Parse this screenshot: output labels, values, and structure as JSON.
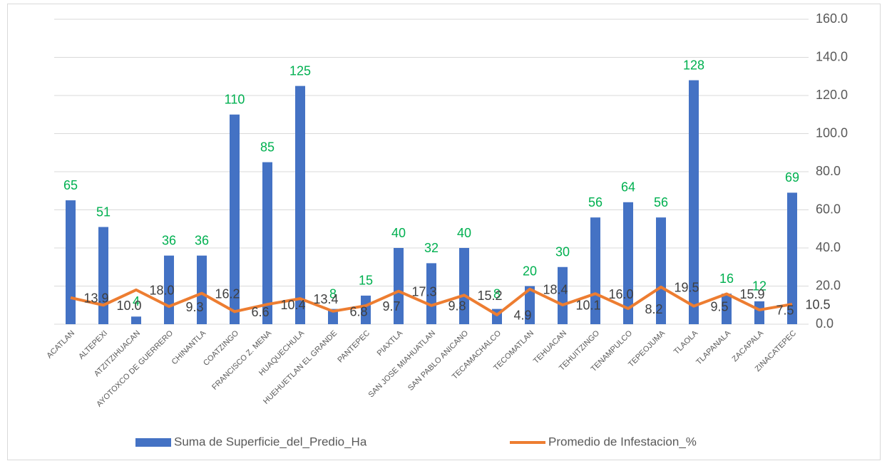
{
  "chart_data": {
    "type": "bar-line",
    "categories": [
      "ACATLAN",
      "ALTEPEXI",
      "ATZITZIHUACAN",
      "AYOTOXCO DE GUERRERO",
      "CHINANTLA",
      "COATZINGO",
      "FRANCISCO Z. MENA",
      "HUAQUECHULA",
      "HUEHUETLAN EL GRANDE",
      "PANTEPEC",
      "PIAXTLA",
      "SAN JOSE MIAHUATLAN",
      "SAN PABLO ANICANO",
      "TECAMACHALCO",
      "TECOMATLAN",
      "TEHUACAN",
      "TEHUITZINGO",
      "TENAMPULCO",
      "TEPEOJUMA",
      "TLAOLA",
      "TLAPANALA",
      "ZACAPALA",
      "ZINACATEPEC"
    ],
    "series": [
      {
        "name": "Suma de Superficie_del_Predio_Ha",
        "type": "bar",
        "color": "#4472c4",
        "values": [
          65,
          51,
          4,
          36,
          36,
          110,
          85,
          125,
          8,
          15,
          40,
          32,
          40,
          8,
          20,
          30,
          56,
          64,
          56,
          128,
          16,
          12,
          69
        ]
      },
      {
        "name": "Promedio de Infestacion_%",
        "type": "line",
        "color": "#ed7d31",
        "values": [
          13.9,
          10,
          18,
          9.3,
          16.2,
          6.6,
          10.4,
          13.4,
          6.8,
          9.7,
          17.3,
          9.8,
          15.2,
          4.9,
          18.4,
          10.1,
          16,
          8.2,
          19.5,
          9.5,
          15.9,
          7.5,
          10.5
        ],
        "value_labels": [
          "13.9",
          "10.0",
          "18.0",
          "9.3",
          "16.2",
          "6.6",
          "10.4",
          "13.4",
          "6.8",
          "9.7",
          "17.3",
          "9.8",
          "15.2",
          "4.9",
          "18.4",
          "10.1",
          "16.0",
          "8.2",
          "19.5",
          "9.5",
          "15.9",
          "7.5",
          "10.5"
        ]
      }
    ],
    "ylim": [
      0,
      160
    ],
    "yticks": [
      {
        "value": 0,
        "label": "0.0"
      },
      {
        "value": 20,
        "label": "20.0"
      },
      {
        "value": 40,
        "label": "40.0"
      },
      {
        "value": 60,
        "label": "60.0"
      },
      {
        "value": 80,
        "label": "80.0"
      },
      {
        "value": 100,
        "label": "100.0"
      },
      {
        "value": 120,
        "label": "120.0"
      },
      {
        "value": 140,
        "label": "140.0"
      },
      {
        "value": 160,
        "label": "160.0"
      }
    ],
    "yaxis_position": "right",
    "grid": true,
    "legend": "bottom"
  }
}
